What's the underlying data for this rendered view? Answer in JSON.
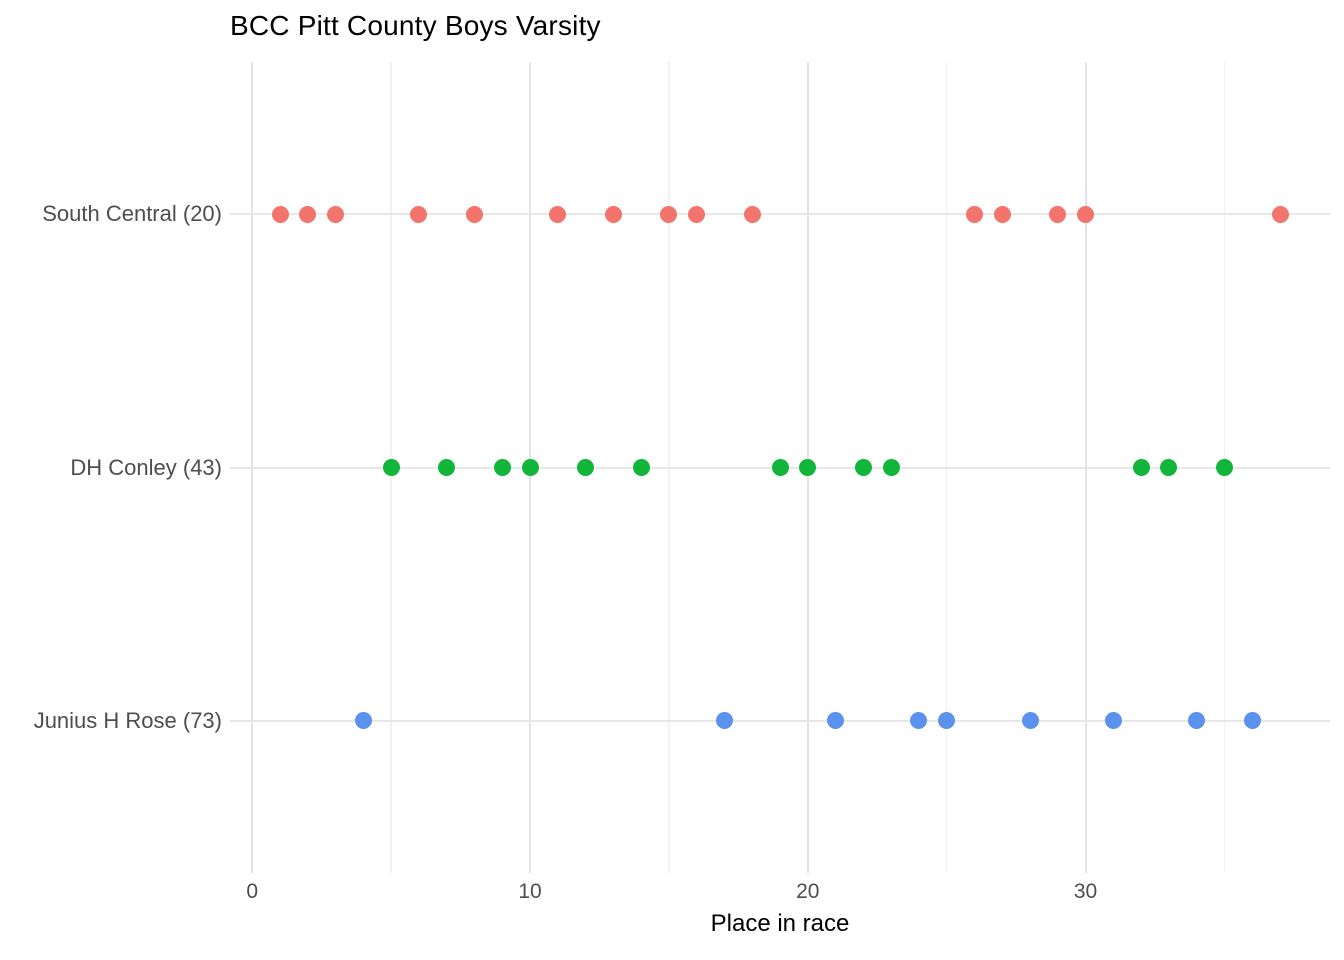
{
  "title": "BCC Pitt County Boys Varsity",
  "colors": {
    "south_central": "#F3746C",
    "dh_conley": "#10B53A",
    "junius_h_rose": "#5B92EE",
    "grid_major": "#e4e4e4",
    "grid_minor": "#f2f2f2",
    "row_line": "#e7e7e7",
    "axis_text": "#4d4d4d",
    "title_text": "#000000"
  },
  "chart_data": {
    "type": "scatter",
    "title": "BCC Pitt County Boys Varsity",
    "xlabel": "Place in race",
    "ylabel": "",
    "xlim": [
      -0.8,
      38.8
    ],
    "x_ticks": [
      0,
      10,
      20,
      30
    ],
    "x_gridlines_major": [
      0,
      10,
      20,
      30
    ],
    "x_gridlines_minor": [
      5,
      15,
      25,
      35
    ],
    "grid": "vertical-only",
    "legend_position": "none",
    "categories": [
      "South Central (20)",
      "DH Conley (43)",
      "Junius H Rose (73)"
    ],
    "series": [
      {
        "name": "South Central (20)",
        "team": "South Central",
        "score": 20,
        "color": "#F3746C",
        "places": [
          1,
          2,
          3,
          6,
          8,
          11,
          13,
          15,
          16,
          18,
          26,
          27,
          29,
          30,
          37
        ]
      },
      {
        "name": "DH Conley (43)",
        "team": "DH Conley",
        "score": 43,
        "color": "#10B53A",
        "places": [
          5,
          7,
          9,
          10,
          12,
          14,
          19,
          20,
          22,
          23,
          32,
          33,
          35
        ]
      },
      {
        "name": "Junius H Rose (73)",
        "team": "Junius H Rose",
        "score": 73,
        "color": "#5B92EE",
        "places": [
          4,
          17,
          21,
          24,
          25,
          28,
          31,
          34,
          36
        ]
      }
    ]
  }
}
